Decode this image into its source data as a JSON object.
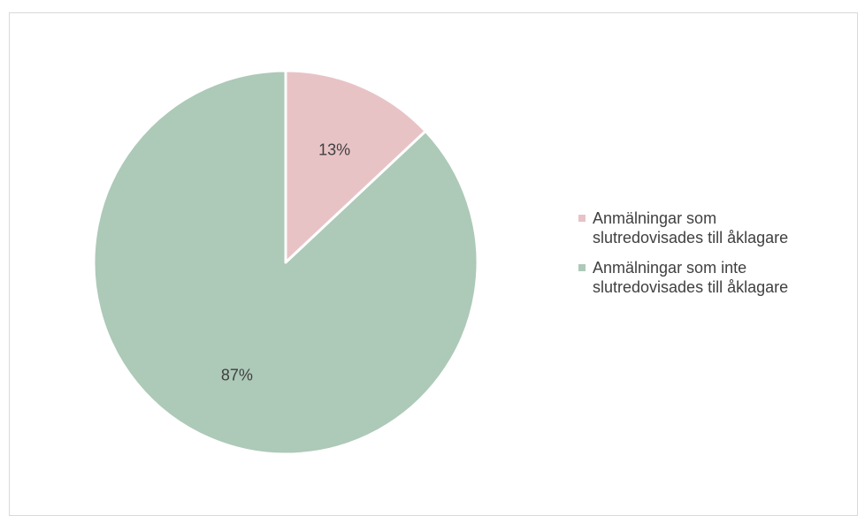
{
  "chart_data": {
    "type": "pie",
    "title": "",
    "slices": [
      {
        "name": "Anmälningar som slutredovisades till åklagare",
        "label_line1": "Anmälningar som",
        "label_line2": "slutredovisades till åklagare",
        "value": 13,
        "value_label": "13%",
        "color": "#e8c3c6"
      },
      {
        "name": "Anmälningar som inte slutredovisades till åklagare",
        "label_line1": "Anmälningar som inte",
        "label_line2": "slutredovisades till åklagare",
        "value": 87,
        "value_label": "87%",
        "color": "#adc9b8"
      }
    ],
    "legend_position": "right",
    "start_angle": "12 o'clock, clockwise"
  }
}
